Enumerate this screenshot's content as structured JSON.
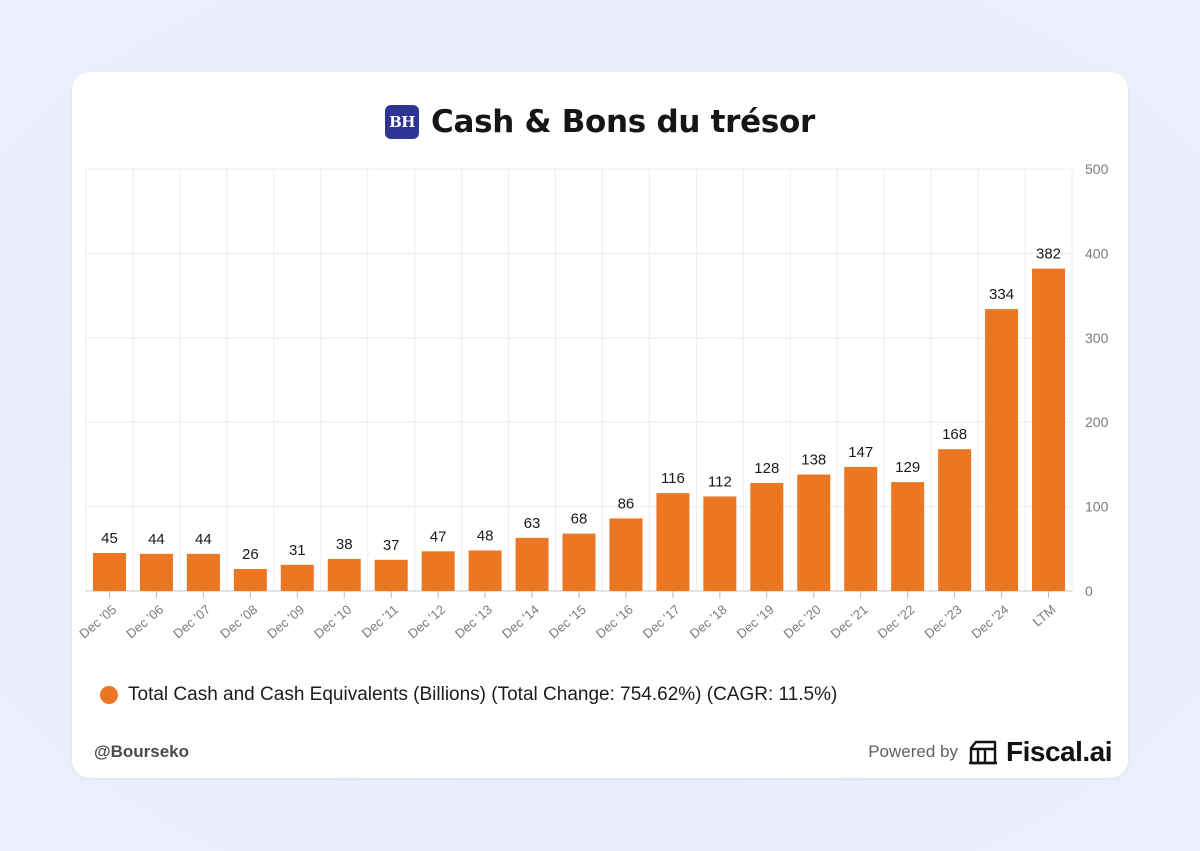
{
  "header": {
    "logo_text": "BH",
    "title": "Cash & Bons du trésor"
  },
  "legend": {
    "label": "Total Cash and Cash Equivalents (Billions) (Total Change: 754.62%) (CAGR: 11.5%)"
  },
  "footer": {
    "handle": "@Bourseko",
    "powered_by": "Powered by",
    "brand": "Fiscal.ai"
  },
  "colors": {
    "bar": "#ec7722",
    "grid": "#ededed",
    "logo_bg": "#2e3494"
  },
  "icons": {
    "brand_logo": "building-columns-icon"
  },
  "chart_data": {
    "type": "bar",
    "categories": [
      "Dec '05",
      "Dec '06",
      "Dec '07",
      "Dec '08",
      "Dec '09",
      "Dec '10",
      "Dec '11",
      "Dec '12",
      "Dec '13",
      "Dec '14",
      "Dec '15",
      "Dec '16",
      "Dec '17",
      "Dec '18",
      "Dec '19",
      "Dec '20",
      "Dec '21",
      "Dec '22",
      "Dec '23",
      "Dec '24",
      "LTM"
    ],
    "series": [
      {
        "name": "Total Cash and Cash Equivalents (Billions)",
        "values": [
          45,
          44,
          44,
          26,
          31,
          38,
          37,
          47,
          48,
          63,
          68,
          86,
          116,
          112,
          128,
          138,
          147,
          129,
          168,
          334,
          382
        ]
      }
    ],
    "ylim": [
      0,
      500
    ],
    "yticks": [
      0,
      100,
      200,
      300,
      400,
      500
    ],
    "y_axis_position": "right",
    "grid": true,
    "legend_position": "bottom-left",
    "data_labels": true
  }
}
